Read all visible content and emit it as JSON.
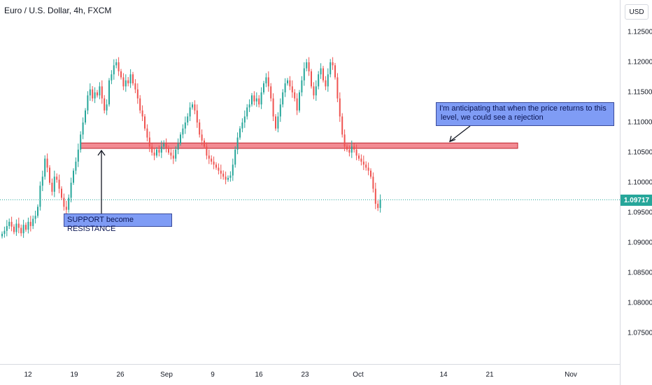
{
  "header": {
    "title": "Euro / U.S. Dollar, 4h, FXCM"
  },
  "price_axis": {
    "currency": "USD",
    "ticks": [
      "1.12500",
      "1.12000",
      "1.11500",
      "1.11000",
      "1.10500",
      "1.10000",
      "1.09500",
      "1.09000",
      "1.08500",
      "1.08000",
      "1.07500"
    ],
    "last_price_label": "1.09717"
  },
  "time_axis": {
    "ticks": [
      "12",
      "19",
      "26",
      "Sep",
      "9",
      "16",
      "23",
      "Oct",
      "14",
      "21",
      "Nov"
    ]
  },
  "annotations": {
    "support_label": "SUPPORT become RESISTANCE",
    "note_line1": "I'm anticipating that when the price returns to this",
    "note_line2": "level, we could see a rejection"
  },
  "colors": {
    "up": "#26a69a",
    "down": "#ef5350",
    "zone_fill": "#f28b93",
    "zone_border": "#c0242c",
    "note_fill": "#7f9cf5",
    "last_price": "#26a69a"
  },
  "chart_data": {
    "type": "candlestick",
    "symbol": "Euro / U.S. Dollar, 4h, FXCM",
    "ylim": [
      1.07,
      1.13
    ],
    "last_price": 1.09717,
    "resistance_zone": [
      1.1057,
      1.1066
    ],
    "x_ticks": [
      "12",
      "19",
      "26",
      "Sep",
      "9",
      "16",
      "23",
      "Oct",
      "14",
      "21",
      "Nov"
    ],
    "closes": [
      1.0915,
      1.092,
      1.0928,
      1.0935,
      1.0927,
      1.0918,
      1.0932,
      1.0925,
      1.0916,
      1.093,
      1.0922,
      1.0935,
      1.0928,
      1.094,
      1.0945,
      1.096,
      1.0995,
      1.101,
      1.104,
      1.1025,
      1.1,
      1.0985,
      1.101,
      1.1005,
      1.099,
      1.0975,
      1.096,
      1.0955,
      1.0975,
      1.1,
      1.102,
      1.1035,
      1.1055,
      1.108,
      1.11,
      1.112,
      1.1145,
      1.1155,
      1.114,
      1.115,
      1.1145,
      1.116,
      1.114,
      1.112,
      1.113,
      1.117,
      1.118,
      1.1195,
      1.12,
      1.1185,
      1.1175,
      1.116,
      1.117,
      1.1165,
      1.118,
      1.1165,
      1.1155,
      1.114,
      1.112,
      1.111,
      1.109,
      1.1075,
      1.106,
      1.105,
      1.1045,
      1.1055,
      1.105,
      1.106,
      1.1065,
      1.1058,
      1.105,
      1.1045,
      1.104,
      1.1055,
      1.1065,
      1.108,
      1.109,
      1.11,
      1.111,
      1.1125,
      1.113,
      1.112,
      1.11,
      1.108,
      1.107,
      1.106,
      1.1045,
      1.104,
      1.1035,
      1.103,
      1.1025,
      1.102,
      1.1015,
      1.101,
      1.1005,
      1.1008,
      1.1012,
      1.103,
      1.1055,
      1.1075,
      1.109,
      1.11,
      1.111,
      1.1125,
      1.113,
      1.1145,
      1.1135,
      1.114,
      1.113,
      1.115,
      1.1165,
      1.1175,
      1.116,
      1.114,
      1.111,
      1.109,
      1.111,
      1.113,
      1.115,
      1.1165,
      1.117,
      1.116,
      1.115,
      1.114,
      1.112,
      1.115,
      1.117,
      1.119,
      1.12,
      1.1185,
      1.116,
      1.1145,
      1.116,
      1.118,
      1.119,
      1.117,
      1.116,
      1.118,
      1.12,
      1.1195,
      1.1175,
      1.114,
      1.111,
      1.108,
      1.106,
      1.1055,
      1.105,
      1.106,
      1.1055,
      1.1045,
      1.104,
      1.1035,
      1.103,
      1.1025,
      1.102,
      1.101,
      1.099,
      1.0965,
      1.0958,
      1.0972
    ]
  }
}
